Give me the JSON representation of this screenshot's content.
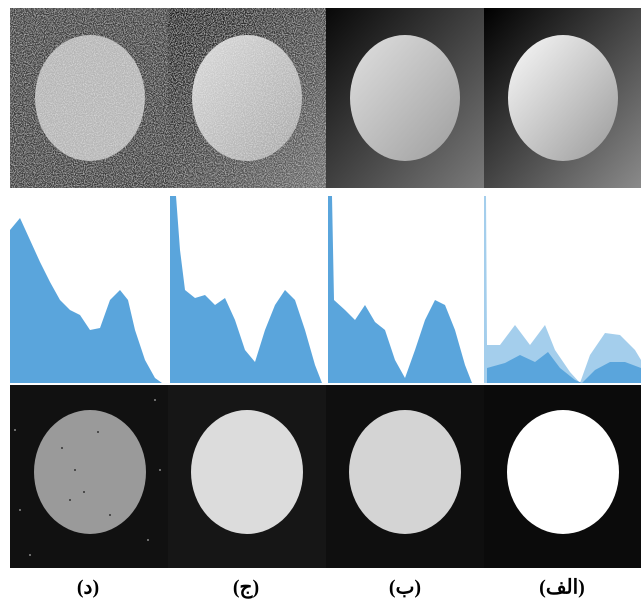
{
  "labels": [
    "(د)",
    "(ج)",
    "(ب)",
    "(الف)"
  ]
}
